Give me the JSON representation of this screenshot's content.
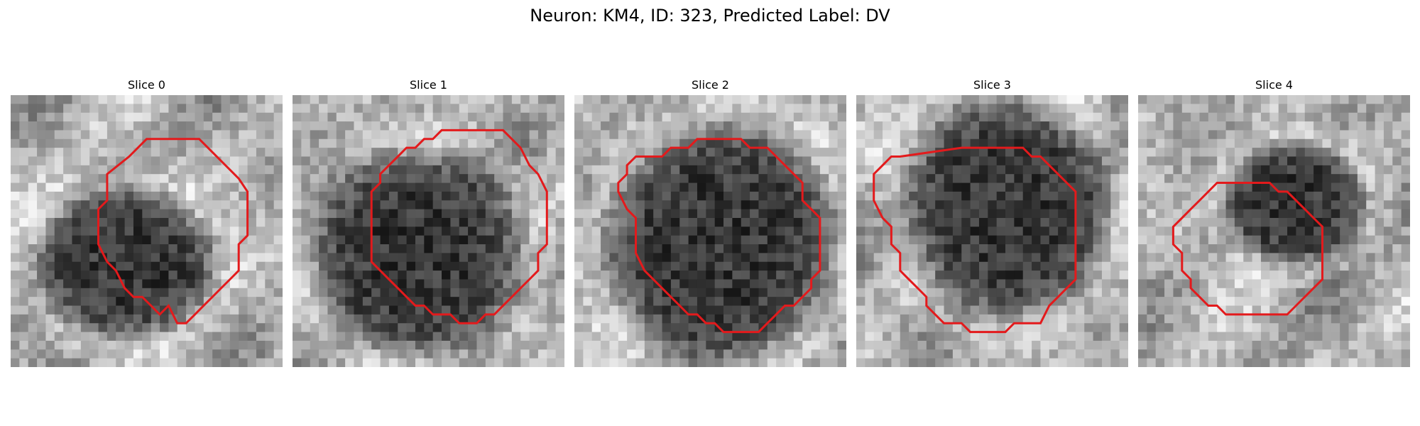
{
  "figure": {
    "title": "Neuron: KM4, ID: 323, Predicted Label: DV"
  },
  "colors": {
    "contour": "#e31a1c",
    "background": "#ffffff"
  },
  "panels": [
    {
      "title": "Slice 0"
    },
    {
      "title": "Slice 1"
    },
    {
      "title": "Slice 2"
    },
    {
      "title": "Slice 3"
    },
    {
      "title": "Slice 4"
    }
  ]
}
